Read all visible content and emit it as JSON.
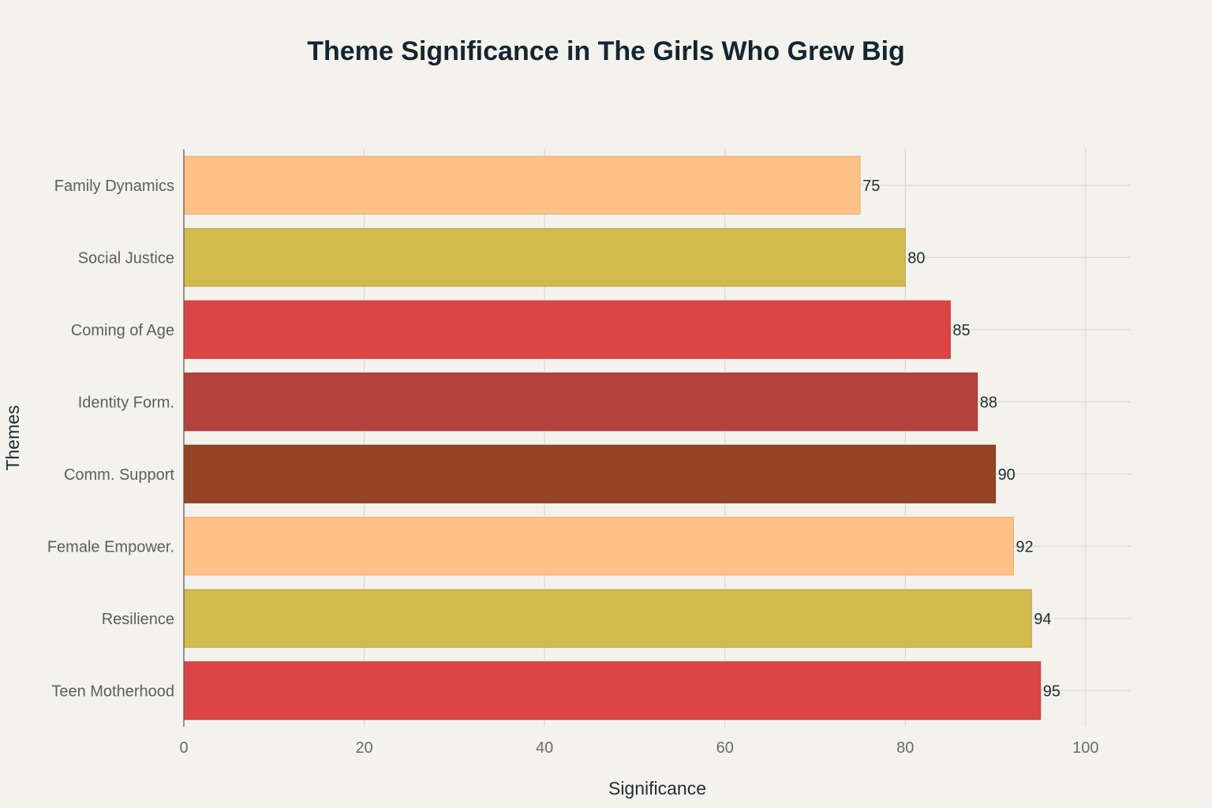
{
  "chart_data": {
    "type": "bar",
    "orientation": "horizontal",
    "title": "Theme Significance in The Girls Who Grew Big",
    "xlabel": "Significance",
    "ylabel": "Themes",
    "xlim": [
      0,
      105
    ],
    "xticks": [
      0,
      20,
      40,
      60,
      80,
      100
    ],
    "grid": true,
    "legend": "none",
    "categories": [
      "Family Dynamics",
      "Social Justice",
      "Coming of Age",
      "Identity Form.",
      "Comm. Support",
      "Female Empower.",
      "Resilience",
      "Teen Motherhood"
    ],
    "values": [
      75,
      80,
      85,
      88,
      90,
      92,
      94,
      95
    ],
    "colors": [
      "#ffc185",
      "#d2ba4c",
      "#db4545",
      "#b4413c",
      "#944423",
      "#ffc185",
      "#d2ba4c",
      "#db4545"
    ],
    "border_colors": [
      "#e8ad78",
      "#bba540",
      "#c83d3d",
      "#a13a35",
      "#84391d",
      "#e8ad78",
      "#bba540",
      "#c83d3d"
    ]
  }
}
